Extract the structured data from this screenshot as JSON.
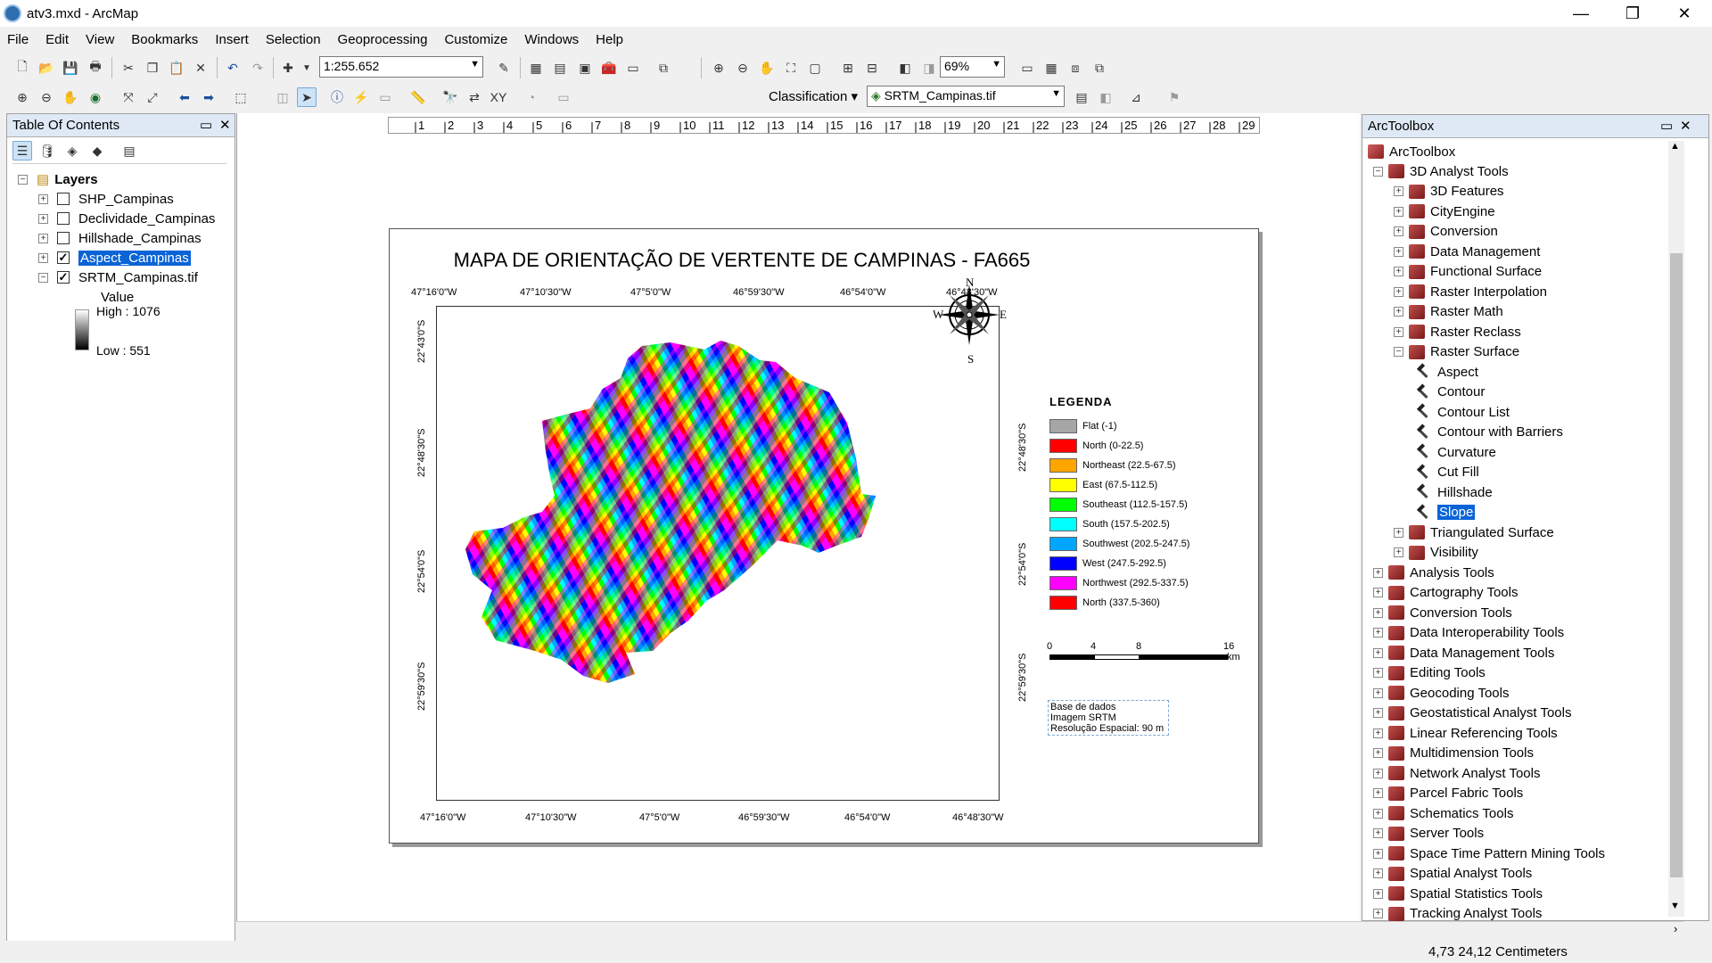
{
  "window": {
    "title": "atv3.mxd - ArcMap",
    "controls": {
      "minimize": "—",
      "maximize": "❐",
      "close": "✕"
    }
  },
  "menu": [
    "File",
    "Edit",
    "View",
    "Bookmarks",
    "Insert",
    "Selection",
    "Geoprocessing",
    "Customize",
    "Windows",
    "Help"
  ],
  "toolbar": {
    "scale": "1:255.652",
    "zoom": "69%",
    "classification_label": "Classification",
    "layer_select": "SRTM_Campinas.tif"
  },
  "toc": {
    "title": "Table Of Contents",
    "root": "Layers",
    "layers": [
      {
        "name": "SHP_Campinas",
        "checked": false
      },
      {
        "name": "Declividade_Campinas",
        "checked": false
      },
      {
        "name": "Hillshade_Campinas",
        "checked": false
      },
      {
        "name": "Aspect_Campinas",
        "checked": true
      },
      {
        "name": "SRTM_Campinas.tif",
        "checked": true
      }
    ],
    "legend": {
      "value_label": "Value",
      "high": "High : 1076",
      "low": "Low : 551"
    }
  },
  "ruler": [
    "1",
    "2",
    "3",
    "4",
    "5",
    "6",
    "7",
    "8",
    "9",
    "10",
    "11",
    "12",
    "13",
    "14",
    "15",
    "16",
    "17",
    "18",
    "19",
    "20",
    "21",
    "22",
    "23",
    "24",
    "25",
    "26",
    "27",
    "28",
    "29"
  ],
  "map": {
    "title": "MAPA DE ORIENTAÇÃO DE VERTENTE DE CAMPINAS - FA665",
    "top_coords": [
      "47°16'0\"W",
      "47°10'30\"W",
      "47°5'0\"W",
      "46°59'30\"W",
      "46°54'0\"W",
      "46°48'30\"W"
    ],
    "bottom_coords": [
      "47°16'0\"W",
      "47°10'30\"W",
      "47°5'0\"W",
      "46°59'30\"W",
      "46°54'0\"W",
      "46°48'30\"W"
    ],
    "left_coords": [
      "22°43'0\"S",
      "22°48'30\"S",
      "22°54'0\"S",
      "22°59'30\"S"
    ],
    "right_coords": [
      "22°48'30\"S",
      "22°54'0\"S",
      "22°59'30\"S"
    ],
    "compass": {
      "n": "N",
      "s": "S",
      "e": "E",
      "w": "W"
    },
    "legend_title": "LEGENDA",
    "legend": [
      {
        "label": "Flat (-1)",
        "color": "#a6a6a6"
      },
      {
        "label": "North (0-22.5)",
        "color": "#ff0000"
      },
      {
        "label": "Northeast (22.5-67.5)",
        "color": "#ffa500"
      },
      {
        "label": "East (67.5-112.5)",
        "color": "#ffff00"
      },
      {
        "label": "Southeast (112.5-157.5)",
        "color": "#00ff00"
      },
      {
        "label": "South (157.5-202.5)",
        "color": "#00ffff"
      },
      {
        "label": "Southwest (202.5-247.5)",
        "color": "#00a6ff"
      },
      {
        "label": "West (247.5-292.5)",
        "color": "#0000ff"
      },
      {
        "label": "Northwest (292.5-337.5)",
        "color": "#ff00ff"
      },
      {
        "label": "North (337.5-360)",
        "color": "#ff0000"
      }
    ],
    "scalebar": {
      "ticks": [
        "0",
        "4",
        "8",
        "16"
      ],
      "unit": "km"
    },
    "source": [
      "Base de dados",
      "Imagem SRTM",
      "Resolução Espacial: 90 m"
    ]
  },
  "arctoolbox": {
    "title": "ArcToolbox",
    "root": "ArcToolbox",
    "items": [
      {
        "label": "3D Analyst Tools",
        "kind": "box",
        "expander": "⊟"
      },
      {
        "label": "3D Features",
        "kind": "box",
        "expander": "⊞"
      },
      {
        "label": "CityEngine",
        "kind": "box",
        "expander": "⊞"
      },
      {
        "label": "Conversion",
        "kind": "box",
        "expander": "⊞"
      },
      {
        "label": "Data Management",
        "kind": "box",
        "expander": "⊞"
      },
      {
        "label": "Functional Surface",
        "kind": "box",
        "expander": "⊞"
      },
      {
        "label": "Raster Interpolation",
        "kind": "box",
        "expander": "⊞"
      },
      {
        "label": "Raster Math",
        "kind": "box",
        "expander": "⊞"
      },
      {
        "label": "Raster Reclass",
        "kind": "box",
        "expander": "⊞"
      },
      {
        "label": "Raster Surface",
        "kind": "box",
        "expander": "⊟"
      },
      {
        "label": "Aspect",
        "kind": "tool"
      },
      {
        "label": "Contour",
        "kind": "tool"
      },
      {
        "label": "Contour List",
        "kind": "tool"
      },
      {
        "label": "Contour with Barriers",
        "kind": "tool"
      },
      {
        "label": "Curvature",
        "kind": "tool"
      },
      {
        "label": "Cut Fill",
        "kind": "tool"
      },
      {
        "label": "Hillshade",
        "kind": "tool"
      },
      {
        "label": "Slope",
        "kind": "tool",
        "selected": true
      },
      {
        "label": "Triangulated Surface",
        "kind": "box",
        "expander": "⊞"
      },
      {
        "label": "Visibility",
        "kind": "box",
        "expander": "⊞"
      },
      {
        "label": "Analysis Tools",
        "kind": "box",
        "expander": "⊞"
      },
      {
        "label": "Cartography Tools",
        "kind": "box",
        "expander": "⊞"
      },
      {
        "label": "Conversion Tools",
        "kind": "box",
        "expander": "⊞"
      },
      {
        "label": "Data Interoperability Tools",
        "kind": "box",
        "expander": "⊞"
      },
      {
        "label": "Data Management Tools",
        "kind": "box",
        "expander": "⊞"
      },
      {
        "label": "Editing Tools",
        "kind": "box",
        "expander": "⊞"
      },
      {
        "label": "Geocoding Tools",
        "kind": "box",
        "expander": "⊞"
      },
      {
        "label": "Geostatistical Analyst Tools",
        "kind": "box",
        "expander": "⊞"
      },
      {
        "label": "Linear Referencing Tools",
        "kind": "box",
        "expander": "⊞"
      },
      {
        "label": "Multidimension Tools",
        "kind": "box",
        "expander": "⊞"
      },
      {
        "label": "Network Analyst Tools",
        "kind": "box",
        "expander": "⊞"
      },
      {
        "label": "Parcel Fabric Tools",
        "kind": "box",
        "expander": "⊞"
      },
      {
        "label": "Schematics Tools",
        "kind": "box",
        "expander": "⊞"
      },
      {
        "label": "Server Tools",
        "kind": "box",
        "expander": "⊞"
      },
      {
        "label": "Space Time Pattern Mining Tools",
        "kind": "box",
        "expander": "⊞"
      },
      {
        "label": "Spatial Analyst Tools",
        "kind": "box",
        "expander": "⊞"
      },
      {
        "label": "Spatial Statistics Tools",
        "kind": "box",
        "expander": "⊞"
      },
      {
        "label": "Tracking Analyst Tools",
        "kind": "box",
        "expander": "⊞"
      }
    ]
  },
  "status": {
    "coords": "4,73  24,12 Centimeters"
  }
}
